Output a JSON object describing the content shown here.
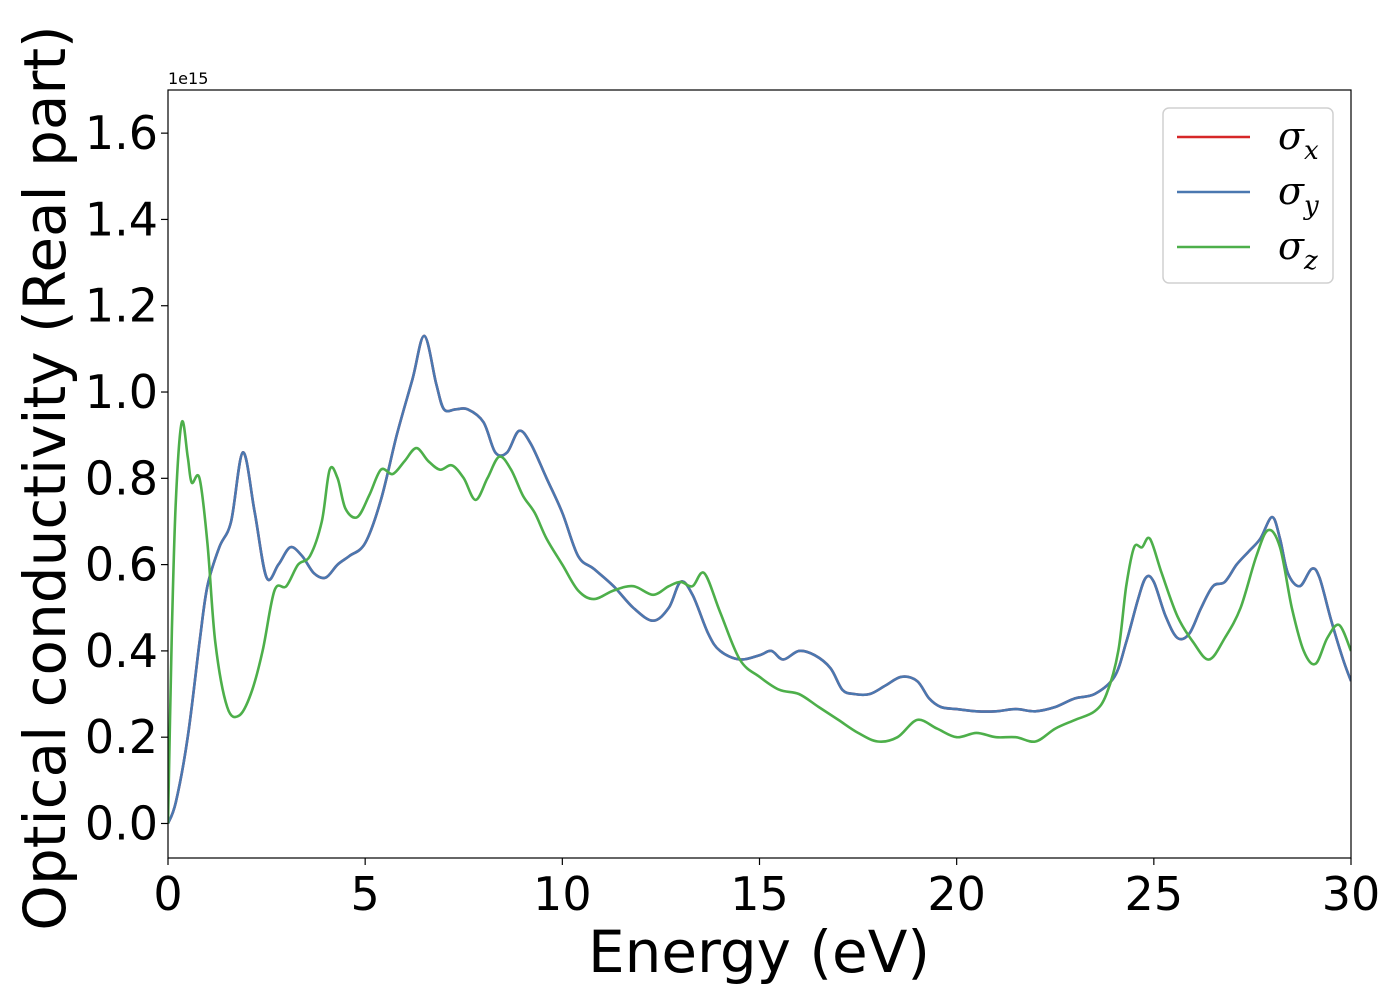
{
  "chart_data": {
    "type": "line",
    "title": "",
    "xlabel": "Energy (eV)",
    "ylabel": "Optical conductivity (Real part)",
    "offset_text": "1e15",
    "xlim": [
      0,
      30
    ],
    "ylim": [
      -0.08,
      1.7
    ],
    "xticks": [
      0,
      5,
      10,
      15,
      20,
      25,
      30
    ],
    "xtick_labels": [
      "0",
      "5",
      "10",
      "15",
      "20",
      "25",
      "30"
    ],
    "yticks": [
      0.0,
      0.2,
      0.4,
      0.6,
      0.8,
      1.0,
      1.2,
      1.4,
      1.6
    ],
    "ytick_labels": [
      "0.0",
      "0.2",
      "0.4",
      "0.6",
      "0.8",
      "1.0",
      "1.2",
      "1.4",
      "1.6"
    ],
    "grid": false,
    "legend_position": "top-right",
    "series": [
      {
        "name": "σ",
        "subscript": "x",
        "color": "#d62728",
        "x": [
          0,
          0.2,
          0.5,
          0.8,
          1.0,
          1.3,
          1.6,
          1.9,
          2.2,
          2.5,
          2.8,
          3.1,
          3.4,
          3.7,
          4.0,
          4.3,
          4.6,
          5.0,
          5.4,
          5.8,
          6.2,
          6.5,
          6.8,
          7.0,
          7.3,
          7.6,
          8.0,
          8.3,
          8.6,
          8.9,
          9.2,
          9.6,
          10.0,
          10.4,
          10.8,
          11.3,
          11.8,
          12.3,
          12.7,
          13.0,
          13.3,
          13.7,
          14.0,
          14.5,
          15.0,
          15.3,
          15.6,
          16.0,
          16.4,
          16.8,
          17.1,
          17.4,
          17.8,
          18.2,
          18.6,
          19.0,
          19.3,
          19.6,
          20.0,
          20.5,
          21.0,
          21.5,
          22.0,
          22.5,
          23.0,
          23.5,
          24.0,
          24.3,
          24.6,
          24.8,
          25.0,
          25.3,
          25.6,
          25.9,
          26.2,
          26.5,
          26.8,
          27.1,
          27.4,
          27.7,
          28.0,
          28.2,
          28.4,
          28.7,
          29.0,
          29.2,
          29.5,
          29.8,
          30.0
        ],
        "y": [
          0.0,
          0.05,
          0.2,
          0.42,
          0.55,
          0.64,
          0.7,
          0.86,
          0.72,
          0.57,
          0.6,
          0.64,
          0.62,
          0.58,
          0.57,
          0.6,
          0.62,
          0.65,
          0.75,
          0.9,
          1.03,
          1.13,
          1.02,
          0.96,
          0.96,
          0.96,
          0.93,
          0.86,
          0.86,
          0.91,
          0.88,
          0.8,
          0.72,
          0.62,
          0.59,
          0.55,
          0.5,
          0.47,
          0.5,
          0.56,
          0.53,
          0.44,
          0.4,
          0.38,
          0.39,
          0.4,
          0.38,
          0.4,
          0.39,
          0.36,
          0.31,
          0.3,
          0.3,
          0.32,
          0.34,
          0.33,
          0.29,
          0.27,
          0.265,
          0.26,
          0.26,
          0.265,
          0.26,
          0.27,
          0.29,
          0.3,
          0.34,
          0.42,
          0.52,
          0.57,
          0.56,
          0.48,
          0.43,
          0.44,
          0.5,
          0.55,
          0.56,
          0.6,
          0.63,
          0.66,
          0.71,
          0.66,
          0.58,
          0.55,
          0.59,
          0.57,
          0.47,
          0.38,
          0.33
        ]
      },
      {
        "name": "σ",
        "subscript": "y",
        "color": "#4a78b0",
        "x": [
          0,
          0.2,
          0.5,
          0.8,
          1.0,
          1.3,
          1.6,
          1.9,
          2.2,
          2.5,
          2.8,
          3.1,
          3.4,
          3.7,
          4.0,
          4.3,
          4.6,
          5.0,
          5.4,
          5.8,
          6.2,
          6.5,
          6.8,
          7.0,
          7.3,
          7.6,
          8.0,
          8.3,
          8.6,
          8.9,
          9.2,
          9.6,
          10.0,
          10.4,
          10.8,
          11.3,
          11.8,
          12.3,
          12.7,
          13.0,
          13.3,
          13.7,
          14.0,
          14.5,
          15.0,
          15.3,
          15.6,
          16.0,
          16.4,
          16.8,
          17.1,
          17.4,
          17.8,
          18.2,
          18.6,
          19.0,
          19.3,
          19.6,
          20.0,
          20.5,
          21.0,
          21.5,
          22.0,
          22.5,
          23.0,
          23.5,
          24.0,
          24.3,
          24.6,
          24.8,
          25.0,
          25.3,
          25.6,
          25.9,
          26.2,
          26.5,
          26.8,
          27.1,
          27.4,
          27.7,
          28.0,
          28.2,
          28.4,
          28.7,
          29.0,
          29.2,
          29.5,
          29.8,
          30.0
        ],
        "y": [
          0.0,
          0.05,
          0.2,
          0.42,
          0.55,
          0.64,
          0.7,
          0.86,
          0.72,
          0.57,
          0.6,
          0.64,
          0.62,
          0.58,
          0.57,
          0.6,
          0.62,
          0.65,
          0.75,
          0.9,
          1.03,
          1.13,
          1.02,
          0.96,
          0.96,
          0.96,
          0.93,
          0.86,
          0.86,
          0.91,
          0.88,
          0.8,
          0.72,
          0.62,
          0.59,
          0.55,
          0.5,
          0.47,
          0.5,
          0.56,
          0.53,
          0.44,
          0.4,
          0.38,
          0.39,
          0.4,
          0.38,
          0.4,
          0.39,
          0.36,
          0.31,
          0.3,
          0.3,
          0.32,
          0.34,
          0.33,
          0.29,
          0.27,
          0.265,
          0.26,
          0.26,
          0.265,
          0.26,
          0.27,
          0.29,
          0.3,
          0.34,
          0.42,
          0.52,
          0.57,
          0.56,
          0.48,
          0.43,
          0.44,
          0.5,
          0.55,
          0.56,
          0.6,
          0.63,
          0.66,
          0.71,
          0.66,
          0.58,
          0.55,
          0.59,
          0.57,
          0.47,
          0.38,
          0.33
        ]
      },
      {
        "name": "σ",
        "subscript": "z",
        "color": "#4daf4a",
        "x": [
          0,
          0.1,
          0.2,
          0.35,
          0.5,
          0.6,
          0.8,
          1.0,
          1.2,
          1.5,
          1.8,
          2.1,
          2.4,
          2.7,
          3.0,
          3.3,
          3.6,
          3.9,
          4.1,
          4.3,
          4.5,
          4.8,
          5.1,
          5.4,
          5.7,
          6.0,
          6.3,
          6.6,
          6.9,
          7.2,
          7.5,
          7.8,
          8.1,
          8.4,
          8.7,
          9.0,
          9.3,
          9.6,
          10.0,
          10.4,
          10.8,
          11.3,
          11.8,
          12.3,
          12.7,
          13.0,
          13.3,
          13.6,
          14.0,
          14.5,
          15.0,
          15.5,
          16.0,
          16.5,
          17.0,
          17.5,
          18.0,
          18.5,
          19.0,
          19.5,
          20.0,
          20.5,
          21.0,
          21.5,
          22.0,
          22.5,
          23.0,
          23.5,
          23.8,
          24.1,
          24.3,
          24.5,
          24.7,
          24.9,
          25.2,
          25.6,
          26.0,
          26.4,
          26.8,
          27.2,
          27.6,
          27.9,
          28.2,
          28.5,
          28.8,
          29.1,
          29.4,
          29.7,
          30.0
        ],
        "y": [
          0.0,
          0.45,
          0.75,
          0.93,
          0.85,
          0.79,
          0.8,
          0.65,
          0.42,
          0.27,
          0.25,
          0.3,
          0.4,
          0.54,
          0.55,
          0.6,
          0.62,
          0.7,
          0.82,
          0.8,
          0.73,
          0.71,
          0.76,
          0.82,
          0.81,
          0.84,
          0.87,
          0.84,
          0.82,
          0.83,
          0.8,
          0.75,
          0.8,
          0.85,
          0.82,
          0.76,
          0.72,
          0.66,
          0.6,
          0.54,
          0.52,
          0.54,
          0.55,
          0.53,
          0.55,
          0.56,
          0.55,
          0.58,
          0.49,
          0.38,
          0.34,
          0.31,
          0.3,
          0.27,
          0.24,
          0.21,
          0.19,
          0.2,
          0.24,
          0.22,
          0.2,
          0.21,
          0.2,
          0.2,
          0.19,
          0.22,
          0.24,
          0.26,
          0.3,
          0.4,
          0.55,
          0.64,
          0.64,
          0.66,
          0.58,
          0.48,
          0.42,
          0.38,
          0.43,
          0.5,
          0.62,
          0.68,
          0.64,
          0.5,
          0.4,
          0.37,
          0.43,
          0.46,
          0.4
        ]
      }
    ]
  }
}
